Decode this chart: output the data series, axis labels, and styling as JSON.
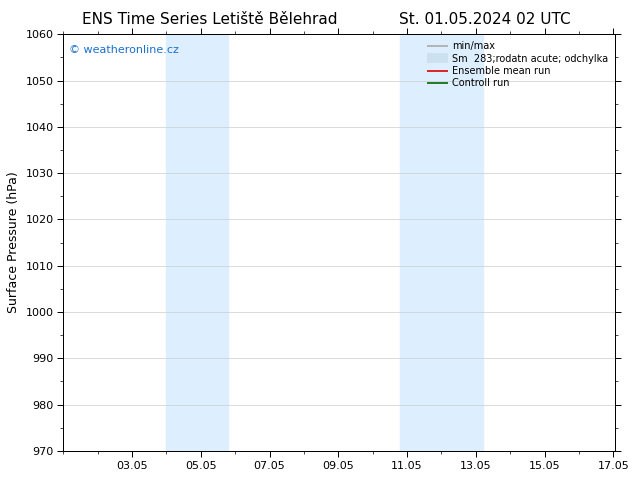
{
  "title": "ENS Time Series Letiště Bělehrad",
  "title_right": "St. 01.05.2024 02 UTC",
  "ylabel": "Surface Pressure (hPa)",
  "ylim": [
    970,
    1060
  ],
  "yticks": [
    970,
    980,
    990,
    1000,
    1010,
    1020,
    1030,
    1040,
    1050,
    1060
  ],
  "xlim": [
    1.0,
    17.05
  ],
  "xtick_labels": [
    "03.05",
    "05.05",
    "07.05",
    "09.05",
    "11.05",
    "13.05",
    "15.05",
    "17.05"
  ],
  "xtick_positions": [
    3,
    5,
    7,
    9,
    11,
    13,
    15,
    17
  ],
  "shaded_regions": [
    {
      "x_start": 4.0,
      "x_end": 5.8,
      "color": "#ddeeff"
    },
    {
      "x_start": 10.8,
      "x_end": 13.2,
      "color": "#ddeeff"
    }
  ],
  "watermark_text": "© weatheronline.cz",
  "watermark_color": "#1a6fce",
  "legend_entries": [
    {
      "label": "min/max",
      "color": "#aaaaaa",
      "linestyle": "-",
      "linewidth": 1.2
    },
    {
      "label": "Sm  283;rodatn acute; odchylka",
      "color": "#cce0f0",
      "linestyle": "-",
      "linewidth": 7
    },
    {
      "label": "Ensemble mean run",
      "color": "#dd0000",
      "linestyle": "-",
      "linewidth": 1.2
    },
    {
      "label": "Controll run",
      "color": "#006600",
      "linestyle": "-",
      "linewidth": 1.2
    }
  ],
  "bg_color": "#ffffff",
  "grid_color": "#cccccc",
  "tick_label_fontsize": 8,
  "axis_label_fontsize": 9,
  "title_fontsize": 11,
  "watermark_fontsize": 8
}
